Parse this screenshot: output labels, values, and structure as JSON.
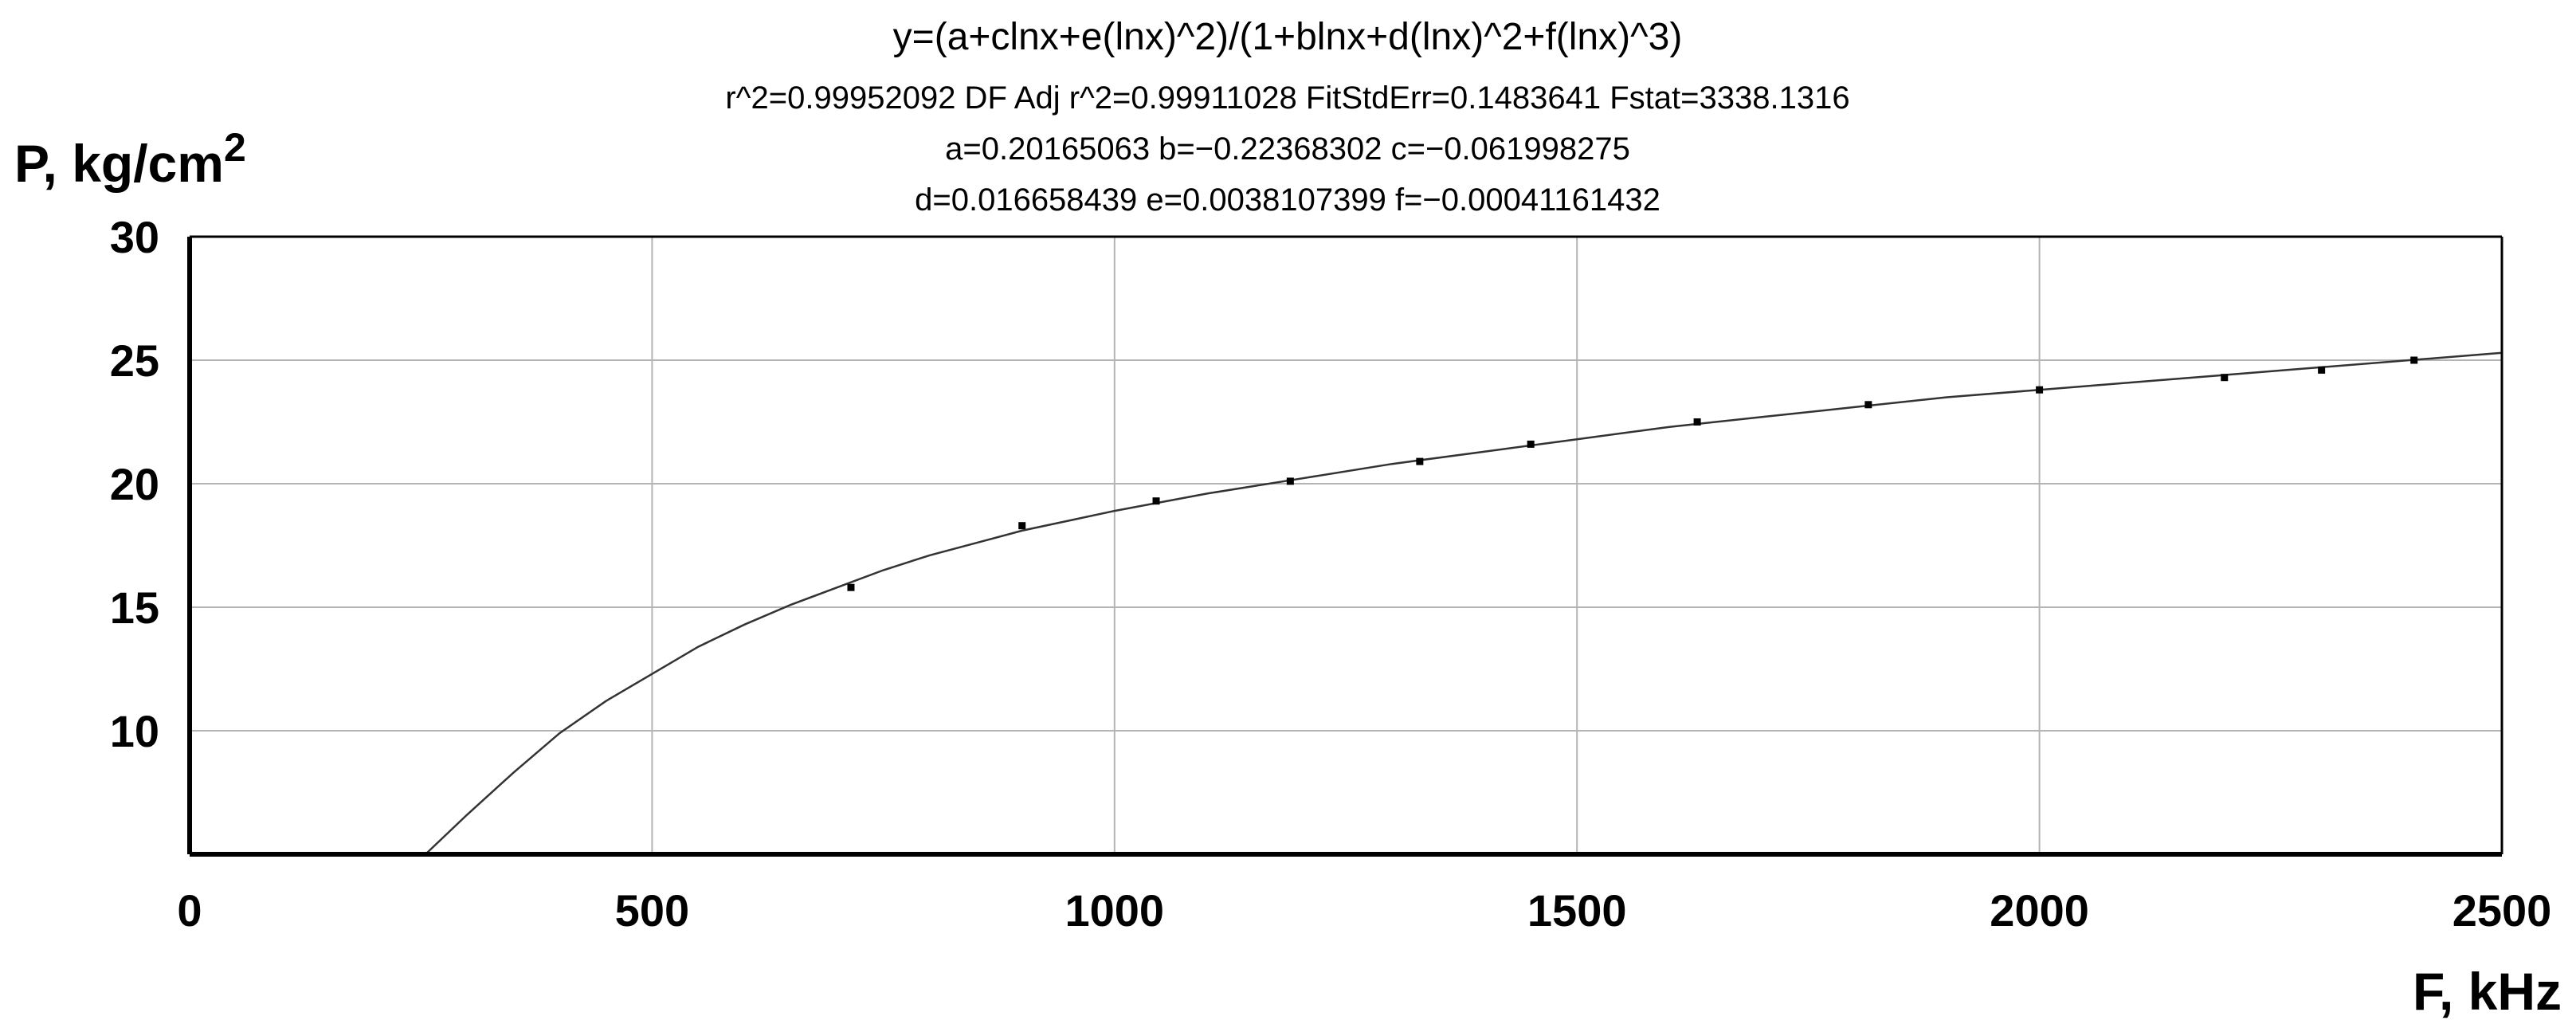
{
  "chart_data": {
    "type": "scatter",
    "header_lines": [
      "y=(a+clnx+e(lnx)^2)/(1+blnx+d(lnx)^2+f(lnx)^3)",
      "r^2=0.99952092  DF Adj r^2=0.99911028  FitStdErr=0.1483641  Fstat=3338.1316",
      "a=0.20165063 b=−0.22368302 c=−0.061998275",
      "d=0.016658439 e=0.0038107399 f=−0.00041161432"
    ],
    "ylabel": "P, kg/cm",
    "ylabel_sup": "2",
    "xlabel": "F, kHz",
    "xlim": [
      0,
      2500
    ],
    "ylim": [
      5,
      30
    ],
    "xticks": [
      "0",
      "500",
      "1000",
      "1500",
      "2000",
      "2500"
    ],
    "yticks": [
      "10",
      "15",
      "20",
      "25",
      "30"
    ],
    "grid": true,
    "coefficients": {
      "a": 0.20165063,
      "b": -0.22368302,
      "c": -0.061998275,
      "d": 0.016658439,
      "e": 0.0038107399,
      "f": -0.00041161432
    },
    "series": [
      {
        "points": [
          {
            "x": 715,
            "y": 15.8
          },
          {
            "x": 900,
            "y": 18.3
          },
          {
            "x": 1045,
            "y": 19.3
          },
          {
            "x": 1190,
            "y": 20.1
          },
          {
            "x": 1330,
            "y": 20.9
          },
          {
            "x": 1450,
            "y": 21.6
          },
          {
            "x": 1630,
            "y": 22.5
          },
          {
            "x": 1815,
            "y": 23.2
          },
          {
            "x": 2000,
            "y": 23.8
          },
          {
            "x": 2200,
            "y": 24.3
          },
          {
            "x": 2305,
            "y": 24.6
          },
          {
            "x": 2405,
            "y": 25.0
          }
        ]
      }
    ],
    "fit_curve": [
      {
        "x": 255,
        "y": 5.0
      },
      {
        "x": 300,
        "y": 6.6
      },
      {
        "x": 350,
        "y": 8.3
      },
      {
        "x": 400,
        "y": 9.9
      },
      {
        "x": 450,
        "y": 11.2
      },
      {
        "x": 500,
        "y": 12.3
      },
      {
        "x": 550,
        "y": 13.4
      },
      {
        "x": 600,
        "y": 14.3
      },
      {
        "x": 650,
        "y": 15.1
      },
      {
        "x": 700,
        "y": 15.8
      },
      {
        "x": 750,
        "y": 16.5
      },
      {
        "x": 800,
        "y": 17.1
      },
      {
        "x": 850,
        "y": 17.6
      },
      {
        "x": 900,
        "y": 18.1
      },
      {
        "x": 950,
        "y": 18.5
      },
      {
        "x": 1000,
        "y": 18.9
      },
      {
        "x": 1100,
        "y": 19.6
      },
      {
        "x": 1200,
        "y": 20.2
      },
      {
        "x": 1300,
        "y": 20.8
      },
      {
        "x": 1400,
        "y": 21.3
      },
      {
        "x": 1500,
        "y": 21.8
      },
      {
        "x": 1600,
        "y": 22.3
      },
      {
        "x": 1700,
        "y": 22.7
      },
      {
        "x": 1800,
        "y": 23.1
      },
      {
        "x": 1900,
        "y": 23.5
      },
      {
        "x": 2000,
        "y": 23.8
      },
      {
        "x": 2100,
        "y": 24.1
      },
      {
        "x": 2200,
        "y": 24.4
      },
      {
        "x": 2300,
        "y": 24.7
      },
      {
        "x": 2400,
        "y": 25.0
      },
      {
        "x": 2500,
        "y": 25.3
      }
    ]
  }
}
